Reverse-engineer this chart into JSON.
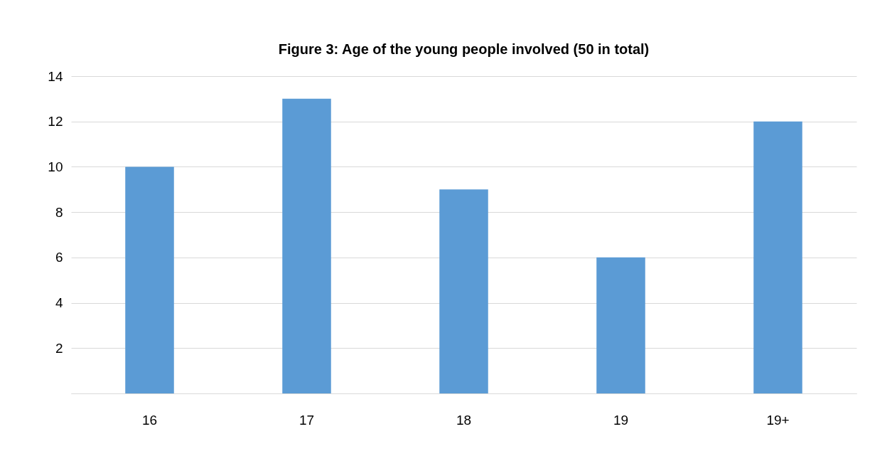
{
  "chart_data": {
    "type": "bar",
    "title": "Figure 3: Age of the young people involved (50 in total)",
    "categories": [
      "16",
      "17",
      "18",
      "19",
      "19+"
    ],
    "values": [
      10,
      13,
      9,
      6,
      12
    ],
    "color": "#5b9bd5",
    "ylim": [
      0,
      14
    ],
    "yticks": [
      {
        "value": 0,
        "label": null
      },
      2,
      4,
      6,
      8,
      10,
      12,
      14
    ],
    "grid": "y"
  }
}
